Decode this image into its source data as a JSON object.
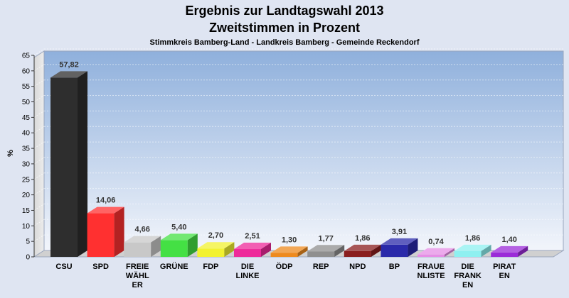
{
  "title_line1": "Ergebnis zur Landtagswahl 2013",
  "title_line2": "Zweitstimmen in Prozent",
  "subtitle": "Stimmkreis Bamberg-Land - Landkreis Bamberg - Gemeinde Reckendorf",
  "chart_data": {
    "type": "bar",
    "ylabel": "%",
    "ylim": [
      0,
      65
    ],
    "yticks": [
      0,
      5,
      10,
      15,
      20,
      25,
      30,
      35,
      40,
      45,
      50,
      55,
      60,
      65
    ],
    "grid": true,
    "categories": [
      [
        "CSU"
      ],
      [
        "SPD"
      ],
      [
        "FREIE",
        "WÄHL",
        "ER"
      ],
      [
        "GRÜNE"
      ],
      [
        "FDP"
      ],
      [
        "DIE",
        "LINKE"
      ],
      [
        "ÖDP"
      ],
      [
        "REP"
      ],
      [
        "NPD"
      ],
      [
        "BP"
      ],
      [
        "FRAUE",
        "NLISTE"
      ],
      [
        "DIE",
        "FRANK",
        "EN"
      ],
      [
        "PIRAT",
        "EN"
      ]
    ],
    "values": [
      57.82,
      14.06,
      4.66,
      5.4,
      2.7,
      2.51,
      1.3,
      1.77,
      1.86,
      3.91,
      0.74,
      1.86,
      1.4
    ],
    "value_labels": [
      "57,82",
      "14,06",
      "4,66",
      "5,40",
      "2,70",
      "2,51",
      "1,30",
      "1,77",
      "1,86",
      "3,91",
      "0,74",
      "1,86",
      "1,40"
    ],
    "colors": [
      "#2e2e2e",
      "#ff3030",
      "#c8c8c8",
      "#44e044",
      "#f2f230",
      "#ee2a9a",
      "#ee8a1e",
      "#8f8f8f",
      "#8a1e1e",
      "#2a2aaa",
      "#e68ee6",
      "#8ef0f0",
      "#9b2bd8"
    ]
  }
}
